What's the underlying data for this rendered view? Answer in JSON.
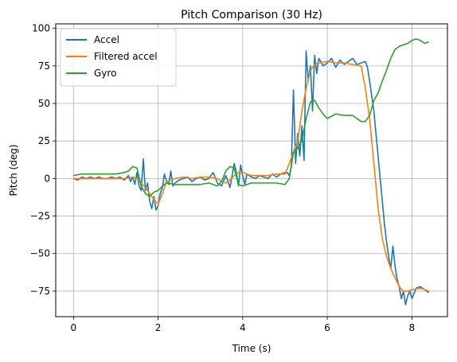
{
  "chart_data": {
    "type": "line",
    "title": "Pitch Comparison (30 Hz)",
    "xlabel": "Time (s)",
    "ylabel": "Pitch (deg)",
    "xlim": [
      -0.42,
      8.84
    ],
    "ylim": [
      -92,
      103
    ],
    "xticks": [
      0,
      2,
      4,
      6,
      8
    ],
    "yticks": [
      -75,
      -50,
      -25,
      0,
      25,
      50,
      75,
      100
    ],
    "grid": true,
    "legend": "top-left",
    "series": [
      {
        "name": "Accel",
        "color": "#1f77b4",
        "x": [
          0.0,
          0.1,
          0.2,
          0.3,
          0.4,
          0.5,
          0.6,
          0.7,
          0.8,
          0.9,
          1.0,
          1.1,
          1.2,
          1.3,
          1.35,
          1.4,
          1.45,
          1.5,
          1.55,
          1.6,
          1.65,
          1.7,
          1.75,
          1.8,
          1.85,
          1.9,
          1.95,
          2.0,
          2.05,
          2.1,
          2.15,
          2.2,
          2.25,
          2.3,
          2.35,
          2.4,
          2.5,
          2.6,
          2.7,
          2.8,
          2.9,
          3.0,
          3.1,
          3.2,
          3.3,
          3.4,
          3.5,
          3.6,
          3.7,
          3.8,
          3.85,
          3.9,
          3.95,
          4.0,
          4.05,
          4.1,
          4.2,
          4.3,
          4.4,
          4.5,
          4.6,
          4.7,
          4.8,
          4.9,
          5.0,
          5.05,
          5.1,
          5.15,
          5.2,
          5.25,
          5.3,
          5.35,
          5.4,
          5.45,
          5.5,
          5.55,
          5.6,
          5.65,
          5.7,
          5.75,
          5.8,
          5.9,
          6.0,
          6.1,
          6.2,
          6.3,
          6.4,
          6.5,
          6.6,
          6.7,
          6.8,
          6.9,
          6.95,
          7.0,
          7.05,
          7.1,
          7.15,
          7.2,
          7.25,
          7.3,
          7.35,
          7.4,
          7.45,
          7.5,
          7.55,
          7.6,
          7.65,
          7.7,
          7.75,
          7.8,
          7.85,
          7.9,
          7.95,
          8.0,
          8.1,
          8.2,
          8.3,
          8.4
        ],
        "y": [
          0,
          -1,
          1,
          0,
          1,
          0,
          1,
          0,
          0,
          1,
          0,
          1,
          -1,
          2,
          -2,
          1,
          -4,
          4,
          -5,
          -8,
          13,
          -8,
          -3,
          -15,
          -20,
          -12,
          -21,
          -18,
          -10,
          -6,
          3,
          -2,
          -4,
          5,
          -5,
          -3,
          -1,
          0,
          1,
          -2,
          0,
          1,
          -1,
          0,
          4,
          -3,
          -5,
          2,
          -6,
          10,
          4,
          -5,
          9,
          2,
          -4,
          3,
          1,
          0,
          2,
          1,
          0,
          3,
          1,
          3,
          4,
          4,
          2,
          8,
          59,
          10,
          30,
          15,
          35,
          12,
          85,
          65,
          75,
          45,
          82,
          70,
          80,
          75,
          77,
          80,
          74,
          79,
          76,
          78,
          80,
          76,
          77,
          78,
          74,
          65,
          55,
          45,
          30,
          15,
          0,
          -15,
          -30,
          -42,
          -52,
          -60,
          -45,
          -58,
          -67,
          -72,
          -80,
          -75,
          -84,
          -78,
          -75,
          -80,
          -73,
          -72,
          -74,
          -76
        ]
      },
      {
        "name": "Filtered accel",
        "color": "#ff7f0e",
        "x": [
          0.0,
          0.2,
          0.4,
          0.6,
          0.8,
          1.0,
          1.2,
          1.4,
          1.5,
          1.6,
          1.7,
          1.8,
          1.9,
          2.0,
          2.1,
          2.2,
          2.3,
          2.4,
          2.6,
          2.8,
          3.0,
          3.2,
          3.4,
          3.5,
          3.6,
          3.7,
          3.8,
          3.9,
          4.0,
          4.1,
          4.2,
          4.4,
          4.6,
          4.8,
          5.0,
          5.1,
          5.2,
          5.3,
          5.4,
          5.5,
          5.6,
          5.7,
          5.8,
          6.0,
          6.2,
          6.4,
          6.6,
          6.8,
          6.9,
          7.0,
          7.1,
          7.2,
          7.3,
          7.4,
          7.5,
          7.6,
          7.7,
          7.8,
          7.9,
          8.0,
          8.2,
          8.4
        ],
        "y": [
          0,
          0,
          0,
          0,
          0,
          0,
          0,
          1,
          0,
          -3,
          -6,
          -10,
          -14,
          -17,
          -10,
          -2,
          -1,
          0,
          1,
          0,
          1,
          1,
          0,
          -2,
          -3,
          -1,
          2,
          4,
          4,
          3,
          2,
          2,
          2,
          3,
          3,
          10,
          18,
          25,
          45,
          60,
          72,
          76,
          77,
          78,
          77,
          77,
          76,
          75,
          60,
          40,
          10,
          -20,
          -40,
          -52,
          -60,
          -66,
          -72,
          -75,
          -75,
          -74,
          -73,
          -75
        ]
      },
      {
        "name": "Gyro",
        "color": "#2ca02c",
        "x": [
          0.0,
          0.2,
          0.4,
          0.6,
          0.8,
          1.0,
          1.2,
          1.3,
          1.4,
          1.5,
          1.6,
          1.7,
          1.8,
          1.9,
          2.0,
          2.1,
          2.2,
          2.4,
          2.6,
          2.8,
          3.0,
          3.2,
          3.4,
          3.5,
          3.6,
          3.7,
          3.8,
          3.9,
          4.0,
          4.2,
          4.4,
          4.6,
          4.8,
          5.0,
          5.1,
          5.2,
          5.3,
          5.4,
          5.5,
          5.6,
          5.7,
          5.8,
          5.9,
          6.0,
          6.2,
          6.4,
          6.6,
          6.8,
          6.9,
          7.0,
          7.1,
          7.2,
          7.3,
          7.4,
          7.5,
          7.6,
          7.7,
          7.8,
          7.9,
          8.0,
          8.1,
          8.2,
          8.3,
          8.4
        ],
        "y": [
          2,
          3,
          3,
          3,
          3,
          3,
          4,
          5,
          8,
          7,
          -5,
          -10,
          -12,
          -9,
          -8,
          -5,
          -3,
          -4,
          -4,
          -4,
          -4,
          -3,
          -5,
          -2,
          5,
          8,
          7,
          -4,
          -5,
          -3,
          -3,
          -3,
          -3,
          -4,
          0,
          17,
          20,
          25,
          40,
          51,
          52,
          47,
          43,
          40,
          43,
          42,
          42,
          38,
          38,
          42,
          52,
          57,
          65,
          72,
          80,
          86,
          88,
          89,
          90,
          92,
          93,
          92,
          90,
          91
        ]
      }
    ]
  }
}
